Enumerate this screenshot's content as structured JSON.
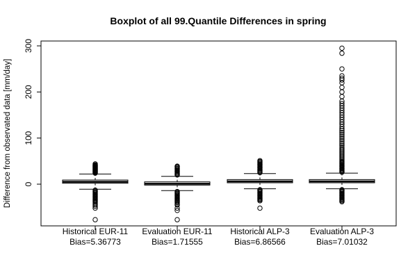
{
  "chart_data": {
    "type": "boxplot",
    "title": "Boxplot of all 99.Quantile Differences in spring",
    "xlabel": "",
    "ylabel": "Difference from observated data [mm/day]",
    "ylim": [
      -90,
      310
    ],
    "yticks": [
      0,
      100,
      200,
      300
    ],
    "categories": [
      {
        "name": "Historical EUR-11",
        "bias_label": "Bias=5.36773"
      },
      {
        "name": "Evaluation EUR-11",
        "bias_label": "Bias=1.71555"
      },
      {
        "name": "Historical ALP-3",
        "bias_label": "Bias=6.86566"
      },
      {
        "name": "Evaluation ALP-3",
        "bias_label": "Bias=7.01032"
      }
    ],
    "boxes": [
      {
        "whisker_low": -11,
        "q1": 2,
        "median": 5,
        "q3": 9,
        "whisker_high": 22,
        "outliers_high": [
          24,
          25,
          26,
          27,
          28,
          29,
          30,
          31,
          32,
          33,
          34,
          35,
          36,
          37,
          38,
          39,
          40,
          41,
          42,
          44
        ],
        "outliers_low": [
          -13,
          -15,
          -17,
          -19,
          -21,
          -23,
          -25,
          -27,
          -29,
          -31,
          -33,
          -35,
          -37,
          -39,
          -42,
          -45,
          -48,
          -52,
          -77
        ]
      },
      {
        "whisker_low": -14,
        "q1": -2,
        "median": 1,
        "q3": 5,
        "whisker_high": 17,
        "outliers_high": [
          20,
          22,
          24,
          26,
          28,
          30,
          32,
          34,
          36,
          38,
          39
        ],
        "outliers_low": [
          -16,
          -18,
          -20,
          -22,
          -24,
          -26,
          -28,
          -30,
          -32,
          -34,
          -36,
          -38,
          -40,
          -43,
          -45,
          -52,
          -57,
          -77
        ]
      },
      {
        "whisker_low": -10,
        "q1": 3,
        "median": 6,
        "q3": 10,
        "whisker_high": 23,
        "outliers_high": [
          25,
          27,
          29,
          31,
          33,
          35,
          37,
          39,
          41,
          43,
          45,
          47,
          49,
          51
        ],
        "outliers_low": [
          -12,
          -14,
          -16,
          -18,
          -20,
          -22,
          -24,
          -26,
          -28,
          -30,
          -32,
          -34,
          -36,
          -52
        ]
      },
      {
        "whisker_low": -10,
        "q1": 3,
        "median": 6,
        "q3": 10,
        "whisker_high": 24,
        "outliers_high": [
          26,
          28,
          30,
          32,
          34,
          36,
          38,
          40,
          42,
          44,
          46,
          48,
          50,
          53,
          56,
          59,
          62,
          65,
          68,
          71,
          74,
          77,
          80,
          84,
          88,
          92,
          96,
          100,
          104,
          108,
          112,
          116,
          120,
          125,
          130,
          135,
          140,
          145,
          150,
          155,
          160,
          165,
          170,
          175,
          180,
          190,
          200,
          210,
          220,
          226,
          230,
          235,
          250,
          284,
          295
        ],
        "outliers_low": [
          -12,
          -14,
          -16,
          -18,
          -20,
          -22,
          -24,
          -26,
          -28,
          -30,
          -32,
          -34,
          -36,
          -38
        ]
      }
    ]
  }
}
